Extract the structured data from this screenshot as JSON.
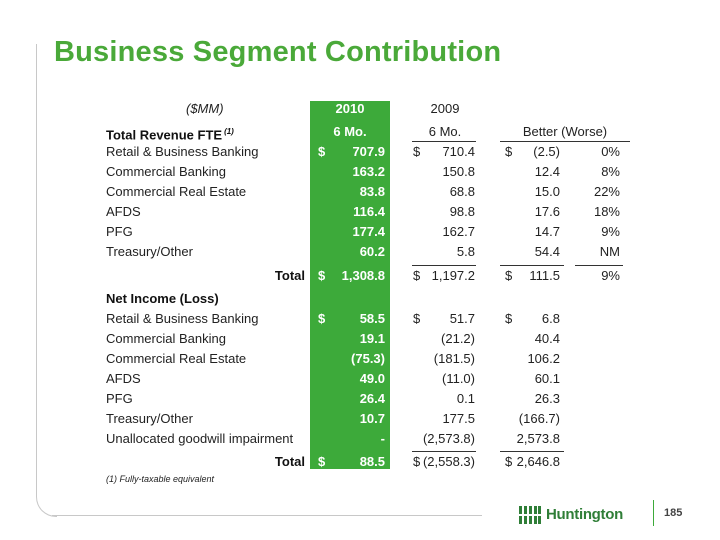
{
  "title": "Business Segment Contribution",
  "units_label": "($MM)",
  "col2010": {
    "year": "2010",
    "period": "6 Mo."
  },
  "col2009": {
    "year": "2009",
    "period": "6 Mo."
  },
  "col_diff": {
    "label": "Better (Worse)"
  },
  "revenue": {
    "header": "Total Revenue FTE",
    "header_note": "(1)",
    "rows": [
      {
        "label": "Retail & Business Banking",
        "d1": "$",
        "v2010": "707.9",
        "d2": "$",
        "v2009": "710.4",
        "d3": "$",
        "diff": "(2.5)",
        "pct": "0%"
      },
      {
        "label": "Commercial Banking",
        "d1": "",
        "v2010": "163.2",
        "d2": "",
        "v2009": "150.8",
        "d3": "",
        "diff": "12.4",
        "pct": "8%"
      },
      {
        "label": "Commercial Real Estate",
        "d1": "",
        "v2010": "83.8",
        "d2": "",
        "v2009": "68.8",
        "d3": "",
        "diff": "15.0",
        "pct": "22%"
      },
      {
        "label": "AFDS",
        "d1": "",
        "v2010": "116.4",
        "d2": "",
        "v2009": "98.8",
        "d3": "",
        "diff": "17.6",
        "pct": "18%"
      },
      {
        "label": "PFG",
        "d1": "",
        "v2010": "177.4",
        "d2": "",
        "v2009": "162.7",
        "d3": "",
        "diff": "14.7",
        "pct": "9%"
      },
      {
        "label": "Treasury/Other",
        "d1": "",
        "v2010": "60.2",
        "d2": "",
        "v2009": "5.8",
        "d3": "",
        "diff": "54.4",
        "pct": "NM"
      }
    ],
    "total": {
      "label": "Total",
      "d1": "$",
      "v2010": "1,308.8",
      "d2": "$",
      "v2009": "1,197.2",
      "d3": "$",
      "diff": "111.5",
      "pct": "9%"
    }
  },
  "net_income": {
    "header": "Net Income (Loss)",
    "rows": [
      {
        "label": "Retail & Business Banking",
        "d1": "$",
        "v2010": "58.5",
        "d2": "$",
        "v2009": "51.7",
        "d3": "$",
        "diff": "6.8"
      },
      {
        "label": "Commercial Banking",
        "d1": "",
        "v2010": "19.1",
        "d2": "",
        "v2009": "(21.2)",
        "d3": "",
        "diff": "40.4"
      },
      {
        "label": "Commercial Real Estate",
        "d1": "",
        "v2010": "(75.3)",
        "d2": "",
        "v2009": "(181.5)",
        "d3": "",
        "diff": "106.2"
      },
      {
        "label": "AFDS",
        "d1": "",
        "v2010": "49.0",
        "d2": "",
        "v2009": "(11.0)",
        "d3": "",
        "diff": "60.1"
      },
      {
        "label": "PFG",
        "d1": "",
        "v2010": "26.4",
        "d2": "",
        "v2009": "0.1",
        "d3": "",
        "diff": "26.3"
      },
      {
        "label": "Treasury/Other",
        "d1": "",
        "v2010": "10.7",
        "d2": "",
        "v2009": "177.5",
        "d3": "",
        "diff": "(166.7)"
      },
      {
        "label": "Unallocated goodwill impairment",
        "d1": "",
        "v2010": "-",
        "d2": "",
        "v2009": "(2,573.8)",
        "d3": "",
        "diff": "2,573.8"
      }
    ],
    "total": {
      "label": "Total",
      "d1": "$",
      "v2010": "88.5",
      "d2": "$",
      "v2009": "(2,558.3)",
      "d3": "$",
      "diff": "2,646.8"
    }
  },
  "footnote": "(1) Fully-taxable equivalent",
  "logo_text": "Huntington",
  "page_number": "185",
  "colors": {
    "accent": "#3daa3a",
    "title": "#4aa939",
    "logo": "#2f7e37"
  }
}
